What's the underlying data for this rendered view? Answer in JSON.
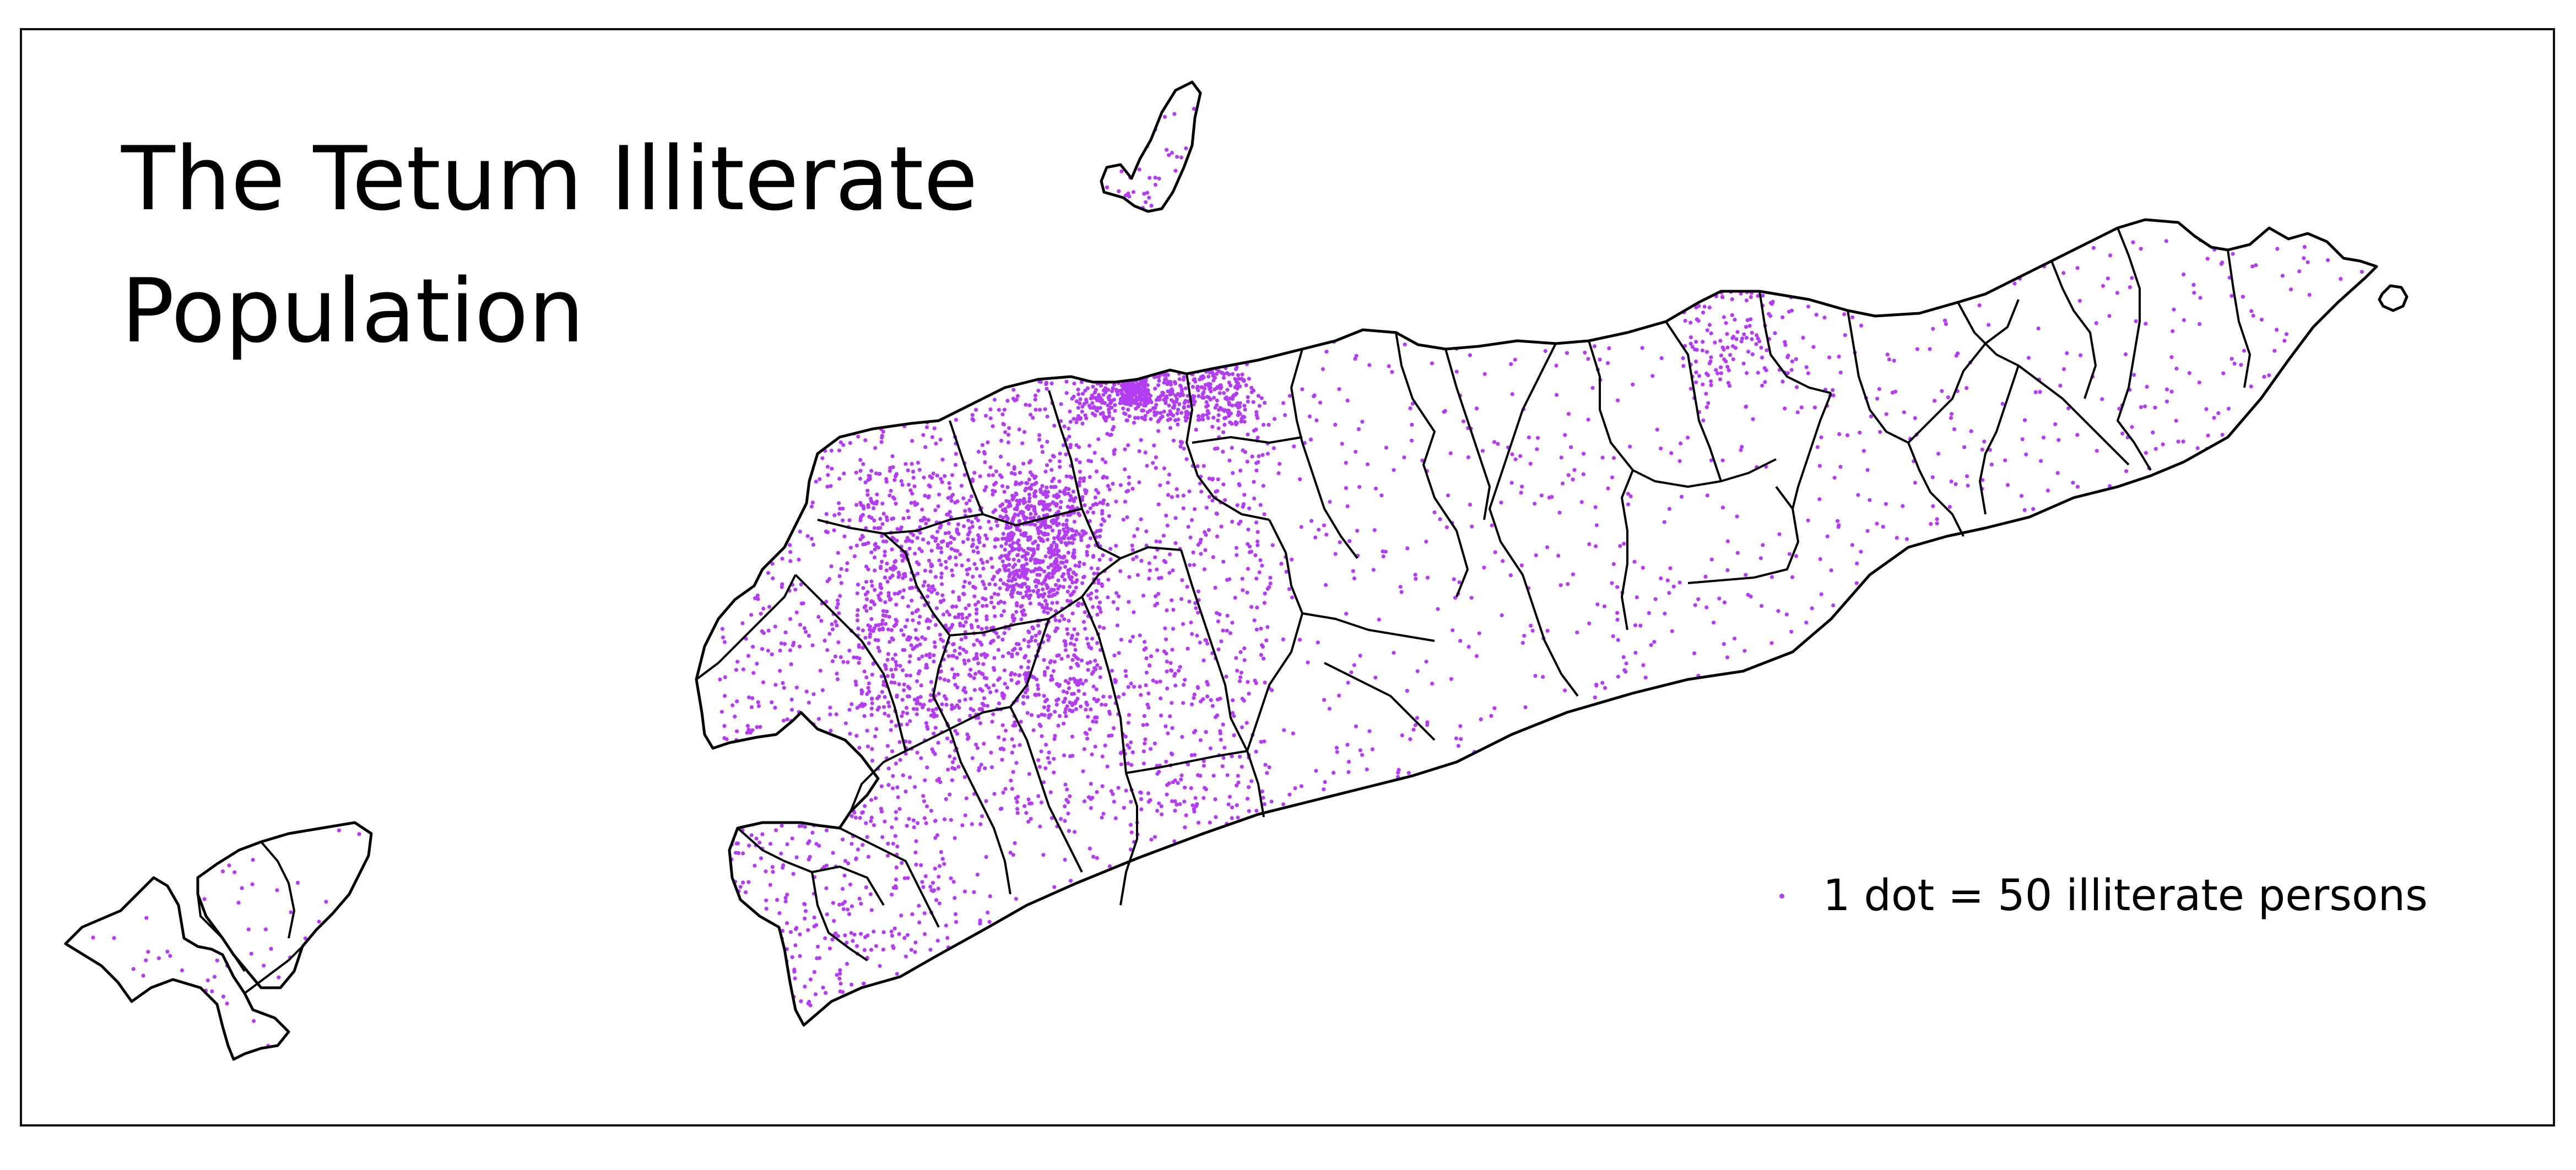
{
  "title": {
    "line1": "The Tetum Illiterate",
    "line2": "Population"
  },
  "legend": {
    "label": "1 dot = 50 illiterate persons",
    "dot_color": "#b23df2"
  },
  "map": {
    "dot_color": "#b23df2",
    "outline_color": "#000000",
    "fill_color": "#ffffff",
    "regions": [
      "main-island",
      "atauro-island",
      "jaco-island",
      "oecusse-exclave"
    ]
  }
}
